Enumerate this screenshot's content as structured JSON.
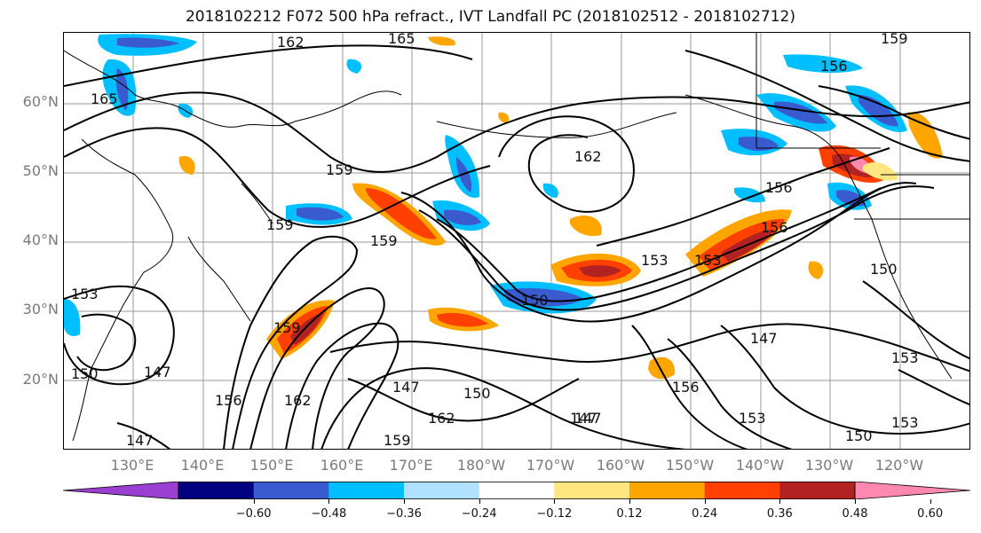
{
  "title": "2018102212 F072 500 hPa refract., IVT Landfall PC (2018102512 - 2018102712)",
  "lat_labels": [
    "60°N",
    "50°N",
    "40°N",
    "30°N",
    "20°N"
  ],
  "lon_labels": [
    "130°E",
    "140°E",
    "150°E",
    "160°E",
    "170°E",
    "180°W",
    "170°W",
    "160°W",
    "150°W",
    "140°W",
    "130°W",
    "120°W"
  ],
  "contour_labels": [
    "162",
    "165",
    "159",
    "165",
    "159",
    "162",
    "159",
    "156",
    "156",
    "156",
    "153",
    "150",
    "153",
    "150",
    "159",
    "147",
    "147",
    "162",
    "147",
    "162",
    "159",
    "150",
    "147",
    "156",
    "153",
    "147",
    "153",
    "150",
    "153",
    "150",
    "159",
    "156",
    "153",
    "147"
  ],
  "colorbar": {
    "ticks": [
      "−0.60",
      "−0.48",
      "−0.36",
      "−0.24",
      "−0.12",
      "0.12",
      "0.24",
      "0.36",
      "0.48",
      "0.60"
    ],
    "colors": [
      "#9a3fd1",
      "#000080",
      "#3a5bcf",
      "#00bfff",
      "#b0e2ff",
      "#ffffff",
      "#ffe680",
      "#ffa500",
      "#ff4000",
      "#b22222",
      "#ff88b0"
    ]
  }
}
